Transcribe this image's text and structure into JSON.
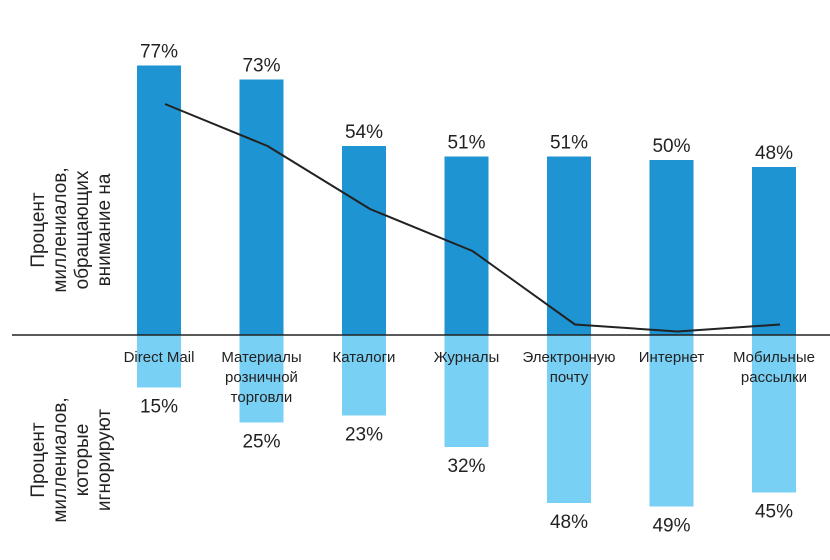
{
  "chart_data": {
    "type": "bar",
    "categories": [
      [
        "Direct Mail"
      ],
      [
        "Материалы",
        "розничной",
        "торговли"
      ],
      [
        "Каталоги"
      ],
      [
        "Журналы"
      ],
      [
        "Электронную",
        "почту"
      ],
      [
        "Интернет"
      ],
      [
        "Мобильные",
        "рассылки"
      ]
    ],
    "series": [
      {
        "name": "Процент миллениалов, обращающих внимание на",
        "values": [
          77,
          73,
          54,
          51,
          51,
          50,
          48
        ],
        "color": "#1e94d2"
      },
      {
        "name": "Процент миллениалов, которые игнорируют",
        "values": [
          15,
          25,
          23,
          32,
          48,
          49,
          45
        ],
        "color": "#79d0f5"
      }
    ],
    "line": {
      "values": [
        66,
        54,
        36,
        24,
        3,
        1,
        3
      ],
      "color": "#222222"
    },
    "value_format": "%",
    "ylabel_top": [
      "Процент",
      "миллениалов,",
      "обращающих",
      "внимание на"
    ],
    "ylabel_bottom": [
      "Процент",
      "миллениалов,",
      "которые",
      "игнорируют"
    ],
    "legend": "none",
    "grid": false
  }
}
